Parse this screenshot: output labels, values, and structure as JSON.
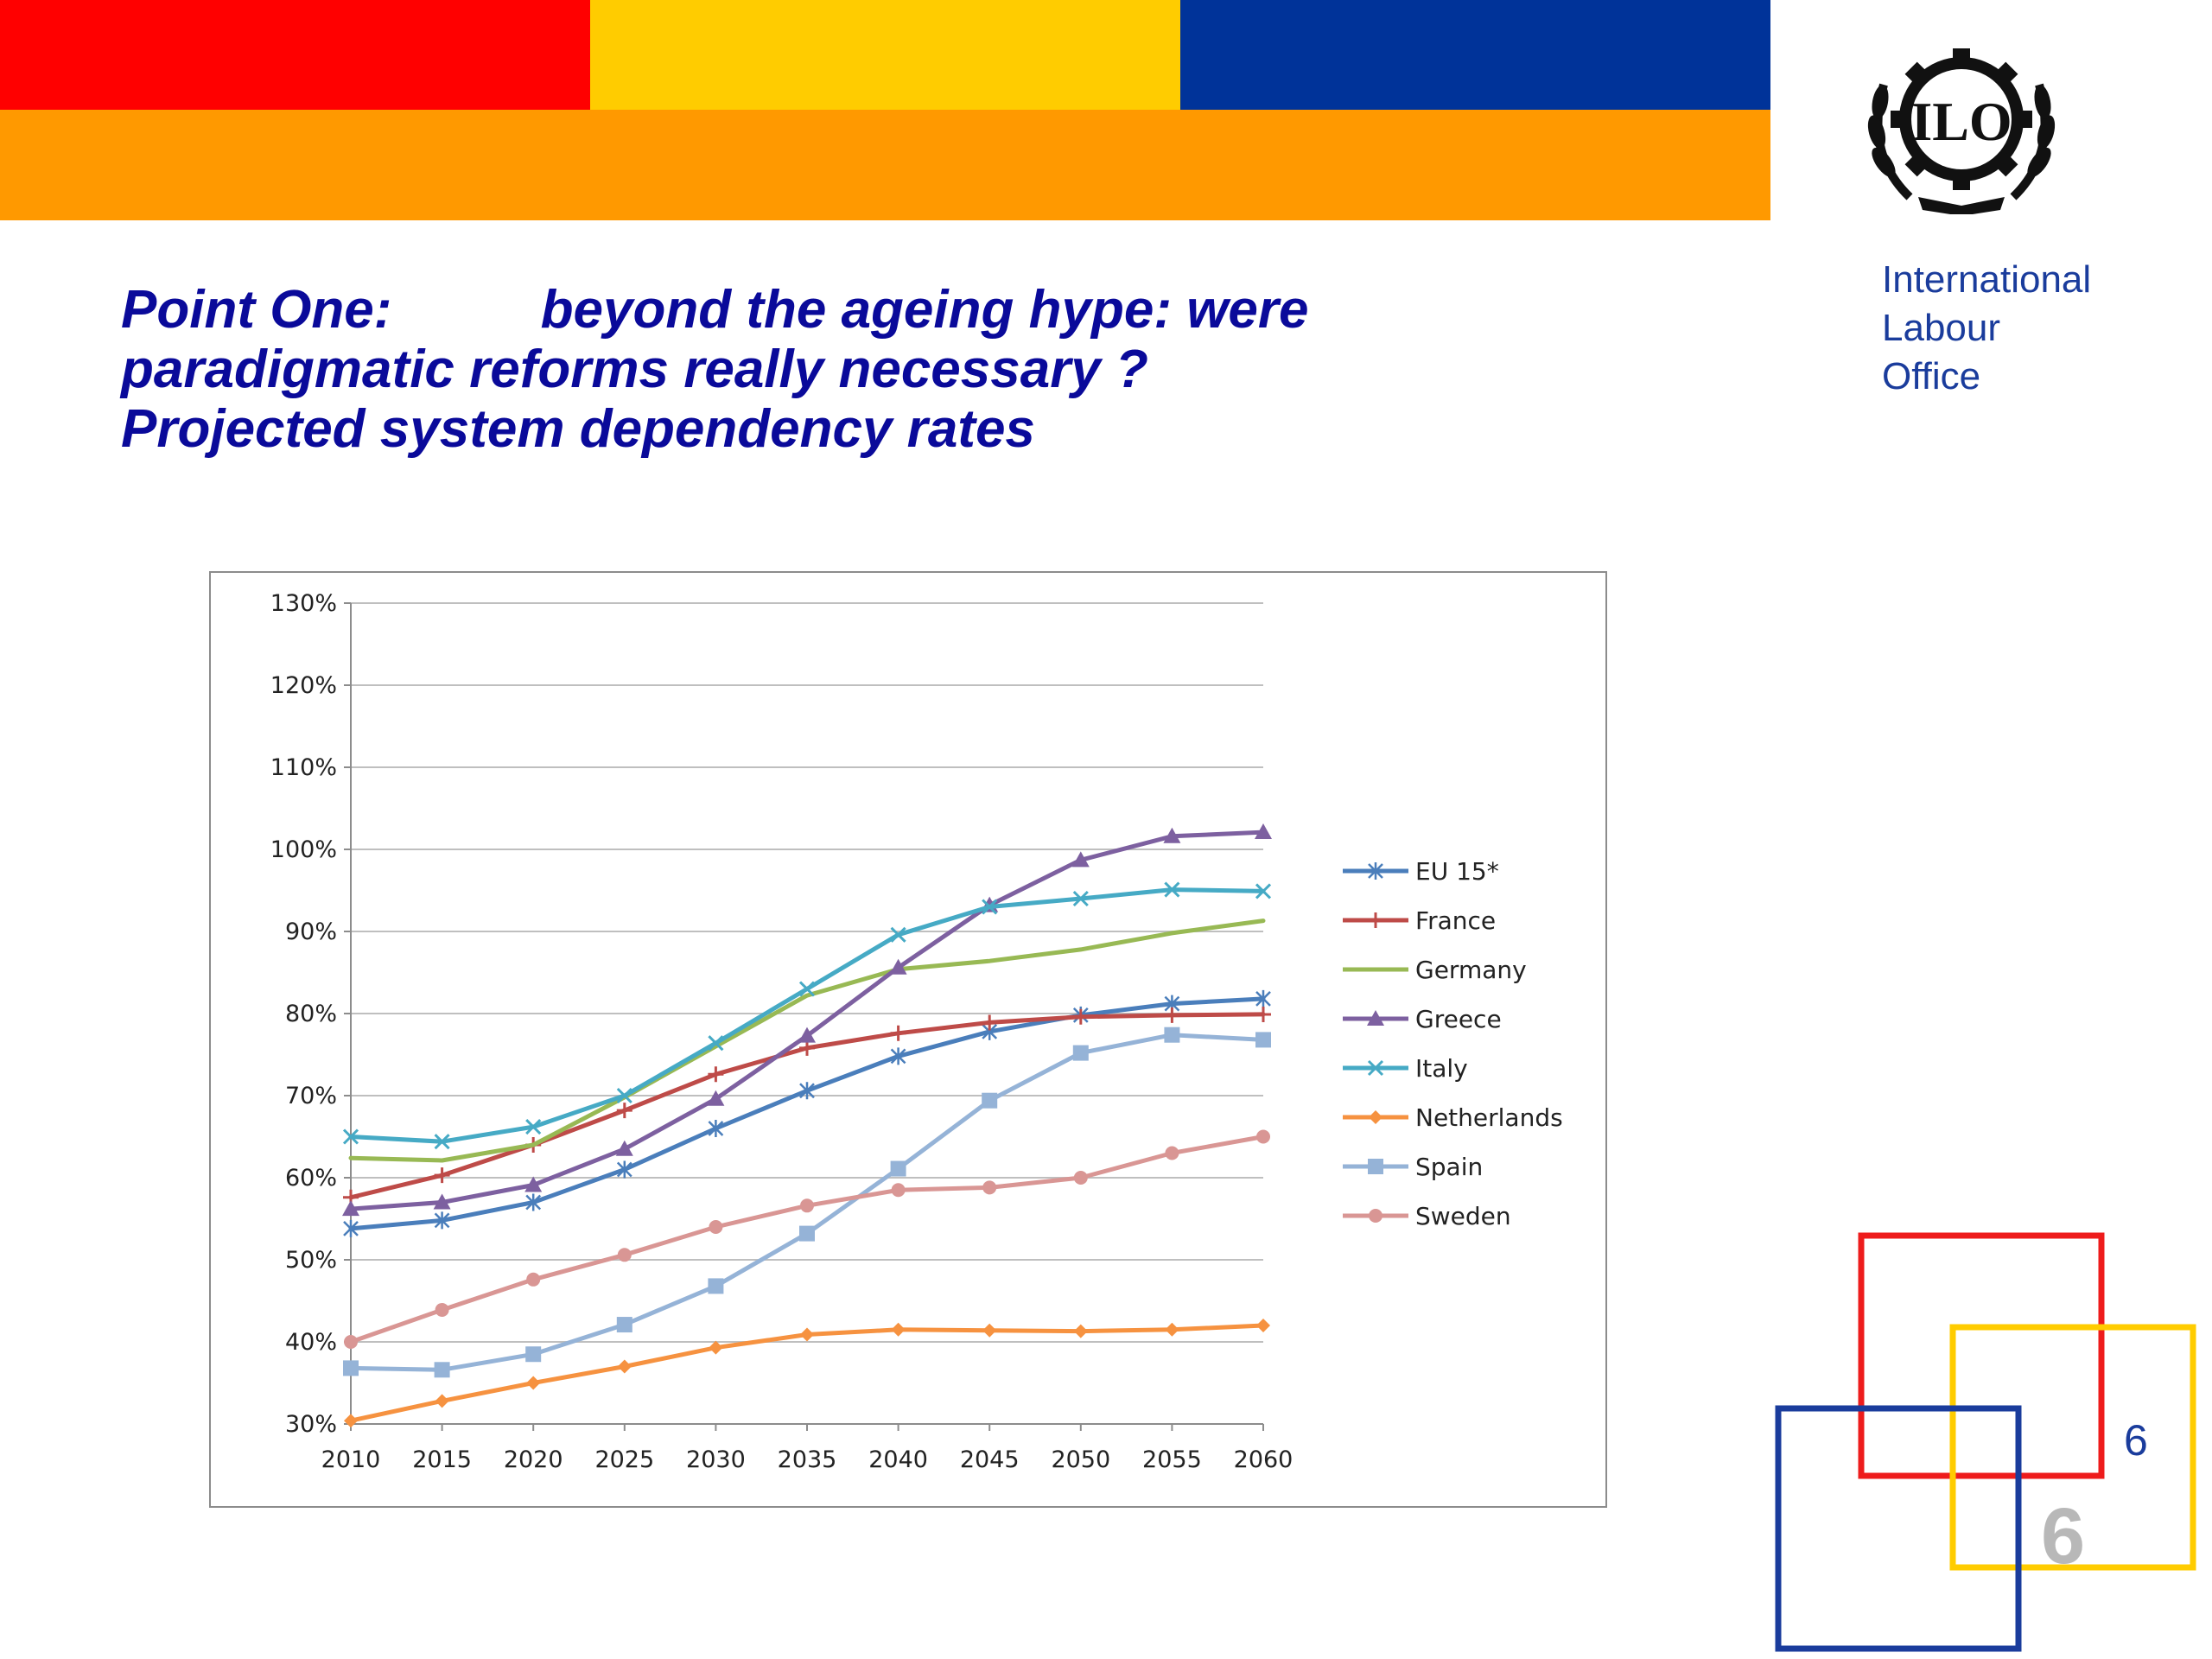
{
  "slide": {
    "title_lines": [
      "Point One:          beyond the ageing hype: were",
      "paradigmatic reforms really necessary ?",
      "Projected system dependency rates"
    ],
    "org_name_lines": [
      "International",
      "Labour",
      "Office"
    ],
    "logo_text": "ILO",
    "slide_number": "6",
    "slide_number_watermark": "6",
    "colors": {
      "red": "#ff0000",
      "yellow": "#ffcc00",
      "blue": "#003399",
      "orange": "#ff9900",
      "title": "#0a0a9a",
      "org_text": "#1a3c9c"
    }
  },
  "chart_data": {
    "type": "line",
    "title": "",
    "xlabel": "",
    "ylabel": "",
    "x": [
      2010,
      2015,
      2020,
      2025,
      2030,
      2035,
      2040,
      2045,
      2050,
      2055,
      2060
    ],
    "x_tick_labels": [
      "2010",
      "2015",
      "2020",
      "2025",
      "2030",
      "2035",
      "2040",
      "2045",
      "2050",
      "2055",
      "2060"
    ],
    "ylim": [
      30,
      130
    ],
    "y_ticks": [
      30,
      40,
      50,
      60,
      70,
      80,
      90,
      100,
      110,
      120,
      130
    ],
    "y_tick_labels": [
      "30%",
      "40%",
      "50%",
      "60%",
      "70%",
      "80%",
      "90%",
      "100%",
      "110%",
      "120%",
      "130%"
    ],
    "grid": true,
    "legend_position": "right",
    "series": [
      {
        "name": "EU 15*",
        "color": "#4a7ebb",
        "marker": "star",
        "values": [
          53.8,
          54.8,
          57.0,
          61.0,
          66.0,
          70.6,
          74.8,
          77.8,
          79.8,
          81.2,
          81.8
        ]
      },
      {
        "name": "France",
        "color": "#be4b48",
        "marker": "plus",
        "values": [
          57.6,
          60.3,
          64.0,
          68.2,
          72.6,
          75.8,
          77.6,
          78.9,
          79.6,
          79.8,
          79.9
        ]
      },
      {
        "name": "Germany",
        "color": "#98b954",
        "marker": "none",
        "values": [
          62.4,
          62.1,
          64.0,
          69.8,
          76.0,
          82.2,
          85.4,
          86.4,
          87.8,
          89.8,
          91.3
        ]
      },
      {
        "name": "Greece",
        "color": "#7d60a0",
        "marker": "triangle",
        "values": [
          56.2,
          57.0,
          59.1,
          63.5,
          69.6,
          77.3,
          85.6,
          93.2,
          98.7,
          101.6,
          102.1
        ]
      },
      {
        "name": "Italy",
        "color": "#46aac5",
        "marker": "x",
        "values": [
          65.0,
          64.4,
          66.2,
          70.0,
          76.4,
          83.0,
          89.6,
          93.0,
          94.0,
          95.1,
          94.9
        ]
      },
      {
        "name": "Netherlands",
        "color": "#f69240",
        "marker": "diamond",
        "values": [
          30.4,
          32.8,
          35.0,
          37.0,
          39.3,
          40.9,
          41.5,
          41.4,
          41.3,
          41.5,
          42.0
        ]
      },
      {
        "name": "Spain",
        "color": "#95b3d7",
        "marker": "square",
        "values": [
          36.8,
          36.6,
          38.5,
          42.1,
          46.8,
          53.2,
          61.1,
          69.4,
          75.2,
          77.4,
          76.8
        ]
      },
      {
        "name": "Sweden",
        "color": "#d99694",
        "marker": "circle",
        "values": [
          40.0,
          43.9,
          47.6,
          50.6,
          54.0,
          56.6,
          58.5,
          58.8,
          60.0,
          63.0,
          65.0
        ]
      }
    ]
  }
}
